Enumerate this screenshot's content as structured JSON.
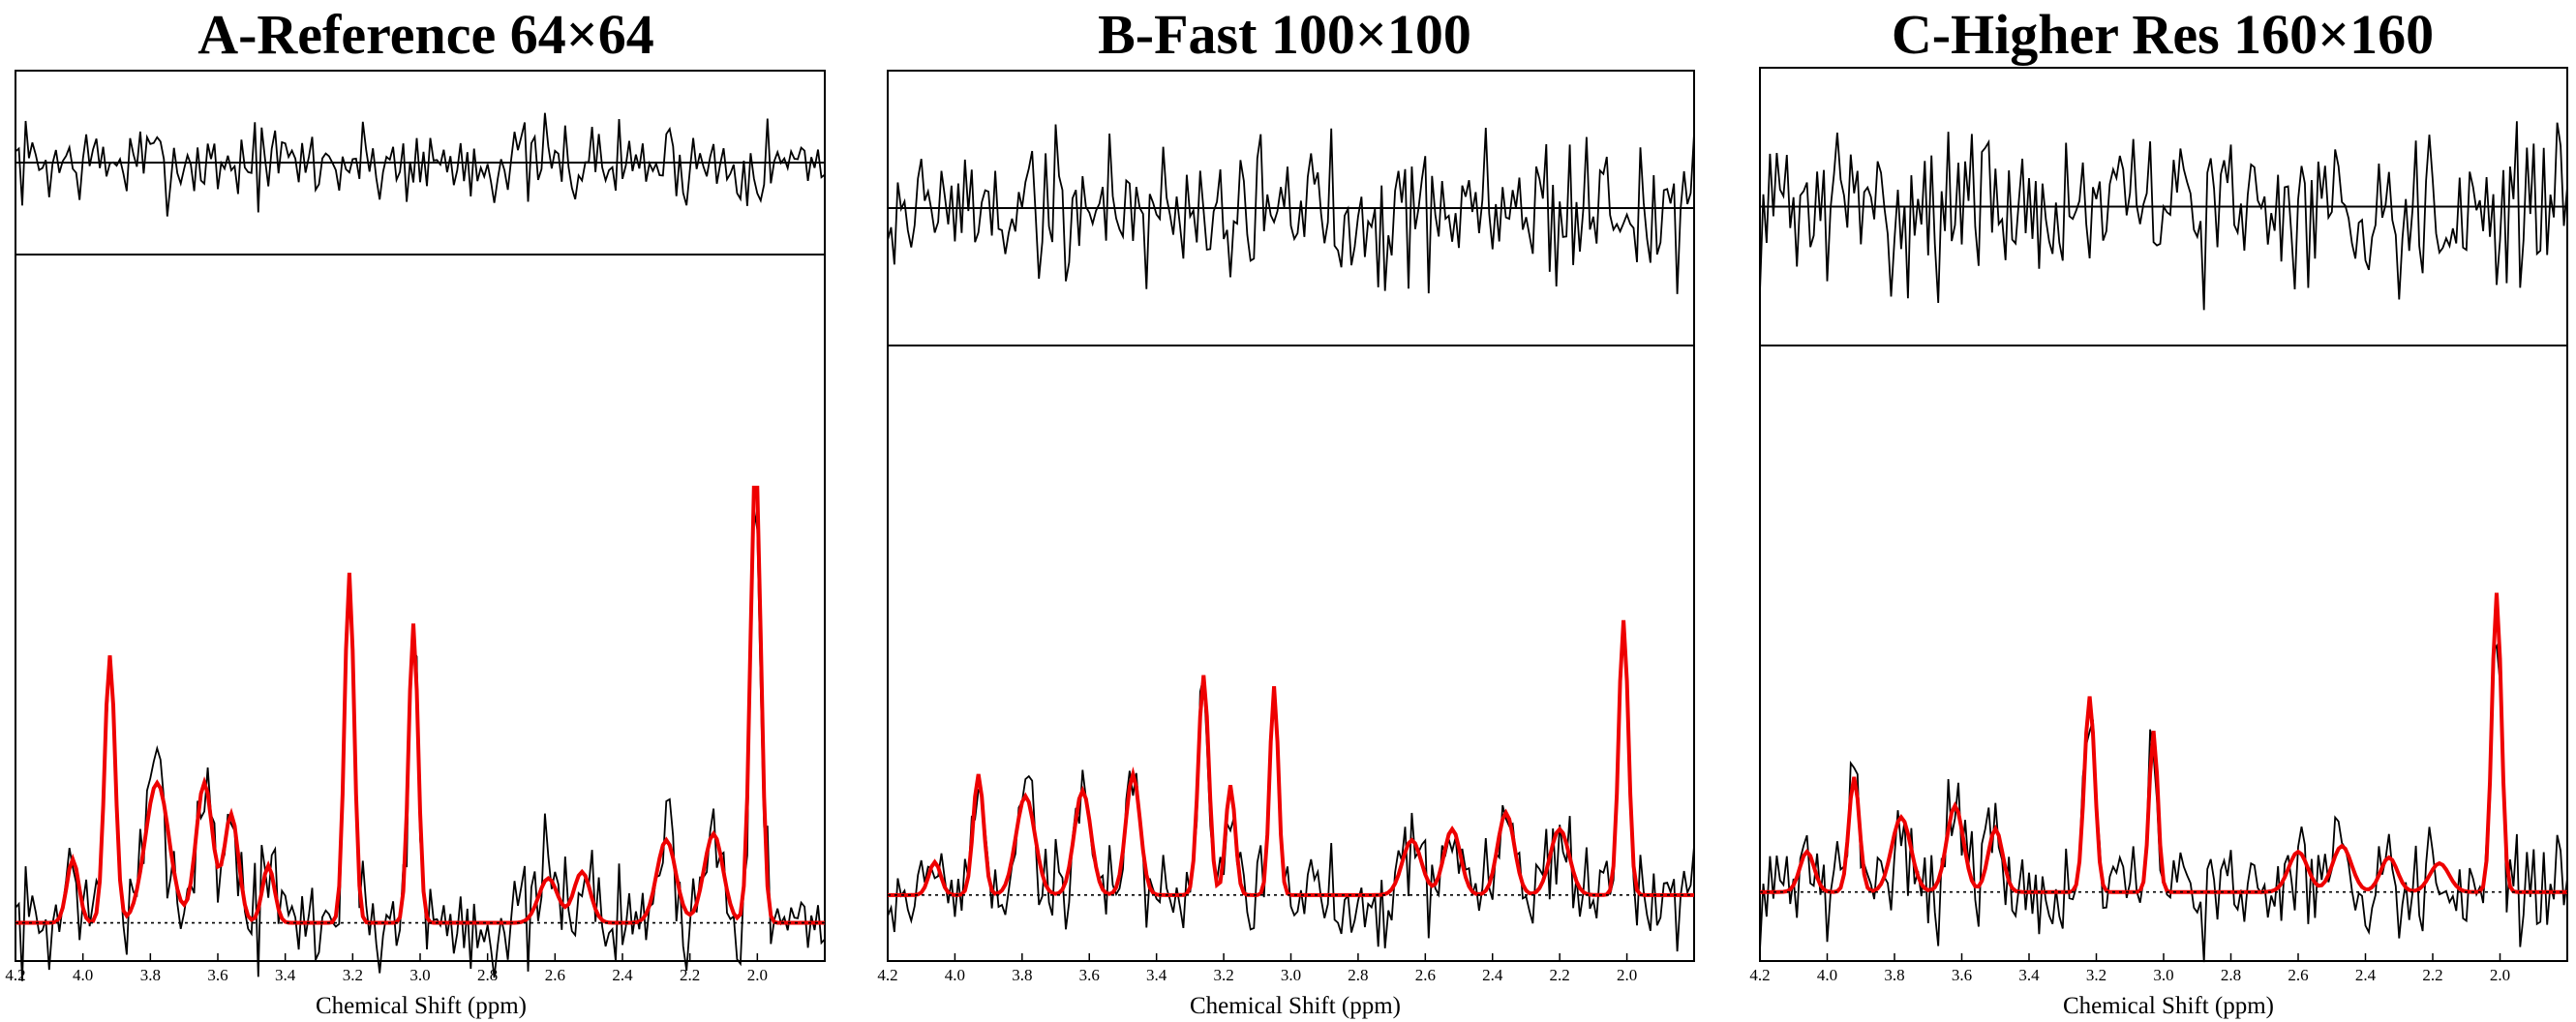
{
  "chart_data": [
    {
      "type": "line",
      "title": "A-Reference 64×64",
      "xlabel": "Chemical Shift (ppm)",
      "xlim": [
        4.2,
        1.8
      ],
      "xticks": [
        4.2,
        4.0,
        3.8,
        3.6,
        3.4,
        3.2,
        3.0,
        2.8,
        2.6,
        2.4,
        2.2,
        2.0
      ],
      "xtick_labels": [
        "4.2",
        "4.0",
        "3.8",
        "3.6",
        "3.4",
        "3.2",
        "3.0",
        "2.8",
        "2.6",
        "2.4",
        "2.2",
        "2.0"
      ],
      "baseline": 0,
      "residual_ylim": [
        -1.2,
        1.2
      ],
      "spectrum_ylim": [
        -0.06,
        1.05
      ],
      "noise_seed": 7,
      "fit_peaks": [
        {
          "ppm": 4.03,
          "height": 0.1,
          "width": 0.025
        },
        {
          "ppm": 3.92,
          "height": 0.42,
          "width": 0.022
        },
        {
          "ppm": 3.78,
          "height": 0.22,
          "width": 0.05
        },
        {
          "ppm": 3.64,
          "height": 0.22,
          "width": 0.035
        },
        {
          "ppm": 3.56,
          "height": 0.17,
          "width": 0.03
        },
        {
          "ppm": 3.45,
          "height": 0.09,
          "width": 0.025
        },
        {
          "ppm": 3.21,
          "height": 0.55,
          "width": 0.02
        },
        {
          "ppm": 3.02,
          "height": 0.47,
          "width": 0.02
        },
        {
          "ppm": 2.62,
          "height": 0.07,
          "width": 0.04
        },
        {
          "ppm": 2.52,
          "height": 0.08,
          "width": 0.035
        },
        {
          "ppm": 2.27,
          "height": 0.13,
          "width": 0.04
        },
        {
          "ppm": 2.13,
          "height": 0.14,
          "width": 0.04
        },
        {
          "ppm": 2.005,
          "height": 0.72,
          "width": 0.022
        }
      ]
    },
    {
      "type": "line",
      "title": "B-Fast 100×100",
      "xlabel": "Chemical Shift (ppm)",
      "xlim": [
        4.2,
        1.8
      ],
      "xticks": [
        4.2,
        4.0,
        3.8,
        3.6,
        3.4,
        3.2,
        3.0,
        2.8,
        2.6,
        2.4,
        2.2,
        2.0
      ],
      "xtick_labels": [
        "4.2",
        "4.0",
        "3.8",
        "3.6",
        "3.4",
        "3.2",
        "3.0",
        "2.8",
        "2.6",
        "2.4",
        "2.2",
        "2.0"
      ],
      "baseline": 0,
      "residual_ylim": [
        -1.0,
        1.0
      ],
      "spectrum_ylim": [
        -0.12,
        1.0
      ],
      "noise_seed": 19,
      "fit_peaks": [
        {
          "ppm": 4.06,
          "height": 0.06,
          "width": 0.025
        },
        {
          "ppm": 3.93,
          "height": 0.22,
          "width": 0.022
        },
        {
          "ppm": 3.79,
          "height": 0.18,
          "width": 0.04
        },
        {
          "ppm": 3.62,
          "height": 0.19,
          "width": 0.035
        },
        {
          "ppm": 3.47,
          "height": 0.22,
          "width": 0.03
        },
        {
          "ppm": 3.26,
          "height": 0.4,
          "width": 0.022
        },
        {
          "ppm": 3.18,
          "height": 0.2,
          "width": 0.02
        },
        {
          "ppm": 3.05,
          "height": 0.38,
          "width": 0.018
        },
        {
          "ppm": 2.64,
          "height": 0.1,
          "width": 0.04
        },
        {
          "ppm": 2.52,
          "height": 0.12,
          "width": 0.035
        },
        {
          "ppm": 2.36,
          "height": 0.15,
          "width": 0.035
        },
        {
          "ppm": 2.2,
          "height": 0.12,
          "width": 0.04
        },
        {
          "ppm": 2.01,
          "height": 0.5,
          "width": 0.02
        }
      ]
    },
    {
      "type": "line",
      "title": "C-Higher Res 160×160",
      "xlabel": "Chemical Shift (ppm)",
      "xlim": [
        4.2,
        1.8
      ],
      "xticks": [
        4.2,
        4.0,
        3.8,
        3.6,
        3.4,
        3.2,
        3.0,
        2.8,
        2.6,
        2.4,
        2.2,
        2.0
      ],
      "xtick_labels": [
        "4.2",
        "4.0",
        "3.8",
        "3.6",
        "3.4",
        "3.2",
        "3.0",
        "2.8",
        "2.6",
        "2.4",
        "2.2",
        "2.0"
      ],
      "baseline": 0,
      "residual_ylim": [
        -1.0,
        1.0
      ],
      "spectrum_ylim": [
        -0.12,
        0.95
      ],
      "noise_seed": 31,
      "fit_peaks": [
        {
          "ppm": 4.06,
          "height": 0.07,
          "width": 0.03
        },
        {
          "ppm": 3.92,
          "height": 0.2,
          "width": 0.022
        },
        {
          "ppm": 3.78,
          "height": 0.13,
          "width": 0.04
        },
        {
          "ppm": 3.62,
          "height": 0.15,
          "width": 0.035
        },
        {
          "ppm": 3.5,
          "height": 0.11,
          "width": 0.03
        },
        {
          "ppm": 3.22,
          "height": 0.34,
          "width": 0.022
        },
        {
          "ppm": 3.03,
          "height": 0.28,
          "width": 0.018
        },
        {
          "ppm": 2.6,
          "height": 0.07,
          "width": 0.04
        },
        {
          "ppm": 2.47,
          "height": 0.08,
          "width": 0.04
        },
        {
          "ppm": 2.33,
          "height": 0.06,
          "width": 0.035
        },
        {
          "ppm": 2.18,
          "height": 0.05,
          "width": 0.04
        },
        {
          "ppm": 2.01,
          "height": 0.52,
          "width": 0.02
        }
      ]
    }
  ]
}
